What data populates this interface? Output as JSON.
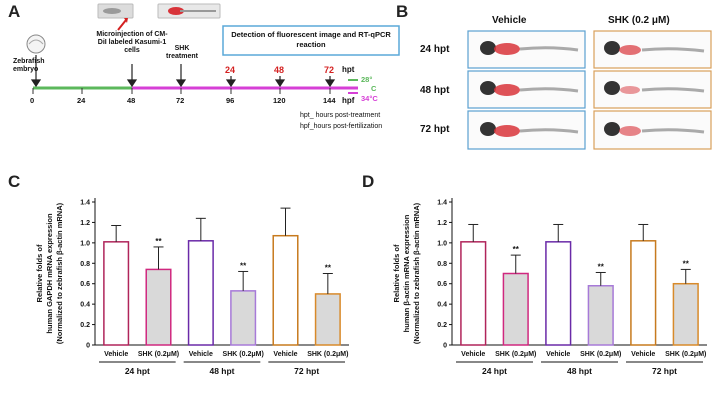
{
  "panels": {
    "A": {
      "letter": "A",
      "zebrafish_embryo_label": "Zebrafish embryo",
      "microinjection_label": "Microinjection of CM-DiI labeled Kasumi-1 cells",
      "shk_treatment_label": "SHK treatment",
      "detection_box_label": "Detection of fluorescent image and RT-qPCR reaction",
      "hpt_unit": "hpt",
      "hpf_unit": "hpf",
      "hpt_ticks": [
        "24",
        "48",
        "72"
      ],
      "hpf_ticks": [
        "0",
        "24",
        "48",
        "72",
        "96",
        "120",
        "144"
      ],
      "temp_28": "28°",
      "temp_c": "C",
      "temp_34": "34°C",
      "legend_hpt": "hpt_ hours post-treatment",
      "legend_hpf": "hpf_hours post-fertilization",
      "colors": {
        "green_line": "#5cb85c",
        "magenta_line": "#d63fd6",
        "hpt_red": "#d42020",
        "box_blue": "#5aa8d8"
      }
    },
    "B": {
      "letter": "B",
      "col_vehicle": "Vehicle",
      "col_shk": "SHK (0.2 μM)",
      "rows": [
        "24 hpt",
        "48 hpt",
        "72 hpt"
      ],
      "colors": {
        "vehicle_border": "#5aa0d0",
        "shk_border": "#d9a05a"
      }
    }
  },
  "chart_data": [
    {
      "panel": "C",
      "letter": "C",
      "type": "bar",
      "ylabel_lines": [
        "Relative folds of",
        "human GAPDH mRNA expression",
        "(Normalized to zebrafish β-actin mRNA)"
      ],
      "ylim": [
        0,
        1.4
      ],
      "yticks": [
        "0",
        "0.2",
        "0.4",
        "0.6",
        "0.8",
        "1.0",
        "1.2",
        "1.4"
      ],
      "categories": [
        "Vehicle",
        "SHK (0.2μM)",
        "Vehicle",
        "SHK (0.2μM)",
        "Vehicle",
        "SHK (0.2μM)"
      ],
      "values": [
        1.01,
        0.74,
        1.02,
        0.53,
        1.07,
        0.5
      ],
      "errors": [
        0.16,
        0.22,
        0.22,
        0.19,
        0.27,
        0.2
      ],
      "significance": [
        "",
        "**",
        "",
        "**",
        "",
        "**"
      ],
      "groups": [
        "24 hpt",
        "48 hpt",
        "72 hpt"
      ],
      "bar_fill": [
        "#ffffff",
        "#d9d9d9",
        "#ffffff",
        "#d9d9d9",
        "#ffffff",
        "#d9d9d9"
      ],
      "bar_stroke": [
        "#b0245a",
        "#d0287f",
        "#6a2aa8",
        "#a77ad8",
        "#c77a1e",
        "#d88a2a"
      ]
    },
    {
      "panel": "D",
      "letter": "D",
      "type": "bar",
      "ylabel_lines": [
        "Relative folds of",
        "human β-actin mRNA expression",
        "(Normalized to zebrafish β-actin mRNA)"
      ],
      "ylim": [
        0,
        1.4
      ],
      "yticks": [
        "0",
        "0.2",
        "0.4",
        "0.6",
        "0.8",
        "1.0",
        "1.2",
        "1.4"
      ],
      "categories": [
        "Vehicle",
        "SHK (0.2μM)",
        "Vehicle",
        "SHK (0.2μM)",
        "Vehicle",
        "SHK (0.2μM)"
      ],
      "values": [
        1.01,
        0.7,
        1.01,
        0.58,
        1.02,
        0.6
      ],
      "errors": [
        0.17,
        0.18,
        0.17,
        0.13,
        0.16,
        0.14
      ],
      "significance": [
        "",
        "**",
        "",
        "**",
        "",
        "**"
      ],
      "groups": [
        "24 hpt",
        "48 hpt",
        "72 hpt"
      ],
      "bar_fill": [
        "#ffffff",
        "#d9d9d9",
        "#ffffff",
        "#d9d9d9",
        "#ffffff",
        "#d9d9d9"
      ],
      "bar_stroke": [
        "#b0245a",
        "#d0287f",
        "#6a2aa8",
        "#a77ad8",
        "#c77a1e",
        "#d88a2a"
      ]
    }
  ]
}
